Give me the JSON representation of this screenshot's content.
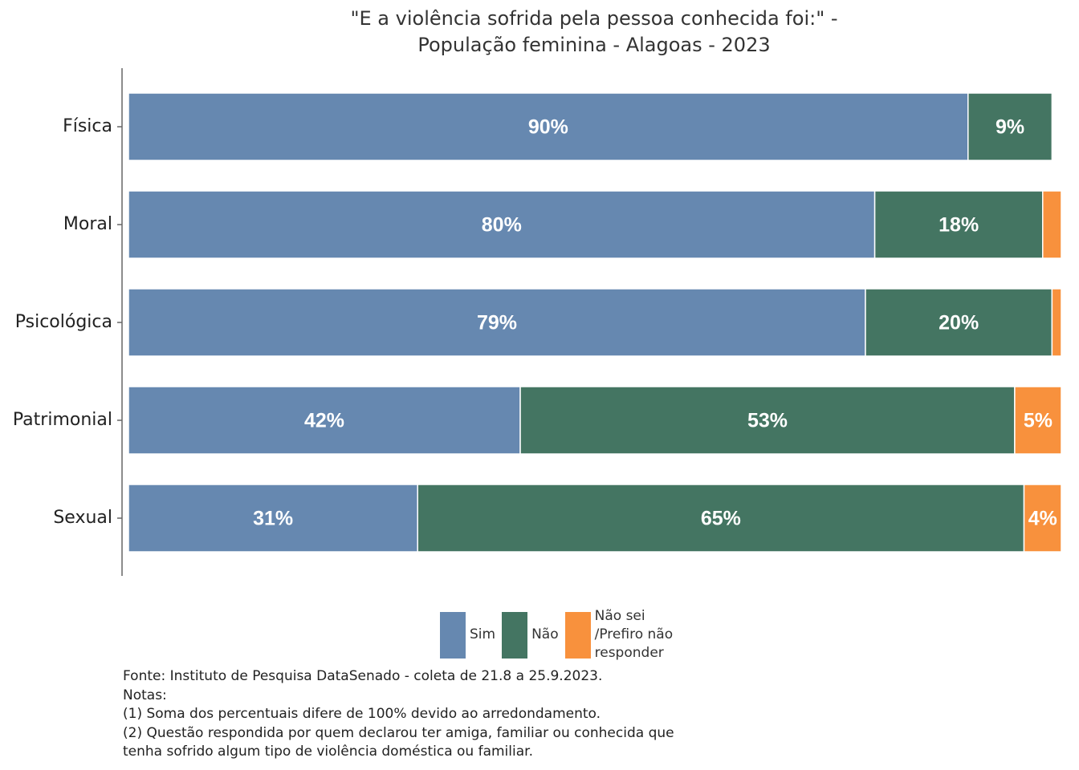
{
  "chart_data": {
    "type": "stacked-bar-horizontal",
    "title": [
      "\"E a violência sofrida pela pessoa conhecida foi:\" -",
      "População feminina - Alagoas - 2023"
    ],
    "categories": [
      "Física",
      "Moral",
      "Psicológica",
      "Patrimonial",
      "Sexual"
    ],
    "series": [
      {
        "name": "Sim",
        "color": "#6688b0",
        "values": [
          90,
          80,
          79,
          42,
          31
        ],
        "value_labels": [
          "90%",
          "80%",
          "79%",
          "42%",
          "31%"
        ]
      },
      {
        "name": "Não",
        "color": "#447562",
        "values": [
          9,
          18,
          20,
          53,
          65
        ],
        "value_labels": [
          "9%",
          "18%",
          "20%",
          "53%",
          "65%"
        ]
      },
      {
        "name": "Não sei /Prefiro não responder",
        "color": "#f8913d",
        "values": [
          null,
          2,
          1,
          5,
          4
        ],
        "value_labels": [
          null,
          null,
          null,
          "5%",
          "4%"
        ]
      }
    ],
    "xlim": [
      0,
      100
    ],
    "notes": [
      "Fonte: Instituto de Pesquisa DataSenado - coleta de 21.8 a 25.9.2023.",
      "Notas:",
      "(1) Soma dos percentuais difere de 100% devido ao arredondamento.",
      "(2) Questão respondida por quem declarou ter amiga, familiar ou conhecida que",
      "tenha sofrido algum tipo de violência doméstica ou familiar."
    ]
  }
}
